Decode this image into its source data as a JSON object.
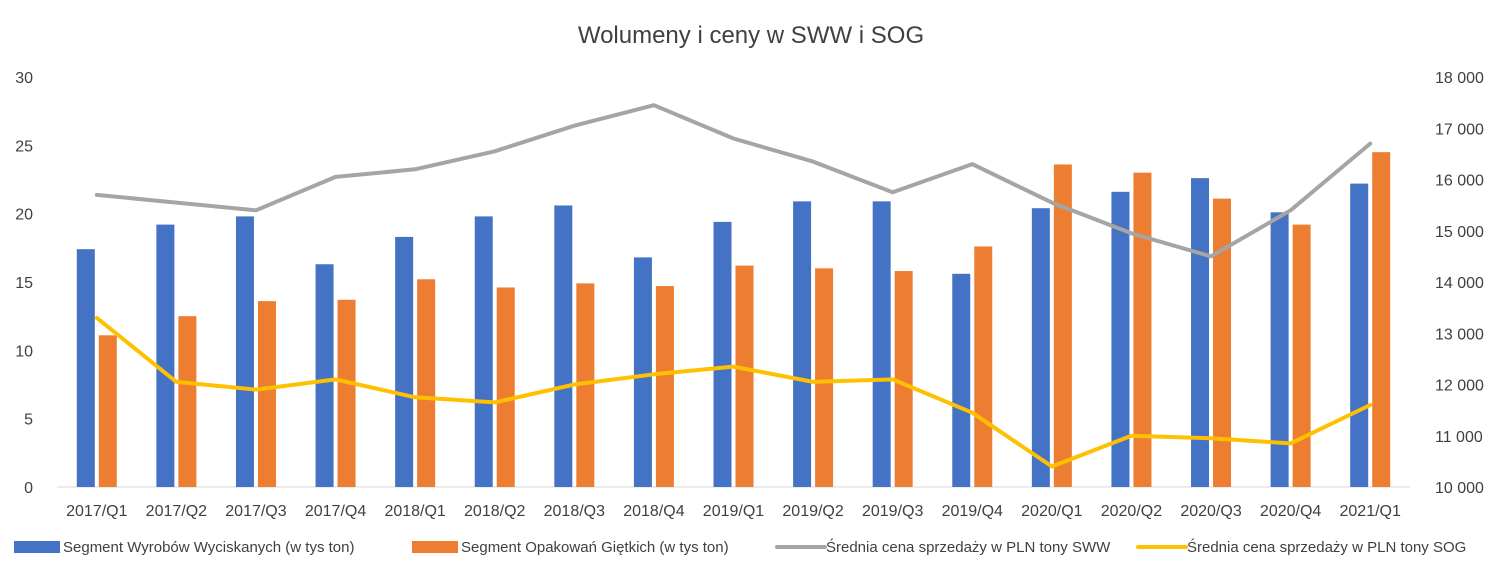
{
  "chart_data": {
    "type": "bar",
    "title": "Wolumeny i ceny w SWW i SOG",
    "categories": [
      "2017/Q1",
      "2017/Q2",
      "2017/Q3",
      "2017/Q4",
      "2018/Q1",
      "2018/Q2",
      "2018/Q3",
      "2018/Q4",
      "2019/Q1",
      "2019/Q2",
      "2019/Q3",
      "2019/Q4",
      "2020/Q1",
      "2020/Q2",
      "2020/Q3",
      "2020/Q4",
      "2021/Q1"
    ],
    "y_left": {
      "ylim": [
        0,
        30
      ],
      "ticks": [
        "0",
        "5",
        "10",
        "15",
        "20",
        "25",
        "30"
      ]
    },
    "y_right": {
      "ylim": [
        10000,
        18000
      ],
      "ticks": [
        "10 000",
        "11 000",
        "12 000",
        "13 000",
        "14 000",
        "15 000",
        "16 000",
        "17 000",
        "18 000"
      ]
    },
    "grid": false,
    "legend_position": "bottom",
    "series": [
      {
        "name": "Segment Wyrobów Wyciskanych (w tys ton)",
        "kind": "bar",
        "axis": "left",
        "color": "#4472C4",
        "values": [
          17.4,
          19.2,
          19.8,
          16.3,
          18.3,
          19.8,
          20.6,
          16.8,
          19.4,
          20.9,
          20.9,
          15.6,
          20.4,
          21.6,
          22.6,
          20.1,
          22.2
        ]
      },
      {
        "name": "Segment Opakowań Giętkich (w tys ton)",
        "kind": "bar",
        "axis": "left",
        "color": "#ED7D31",
        "values": [
          11.1,
          12.5,
          13.6,
          13.7,
          15.2,
          14.6,
          14.9,
          14.7,
          16.2,
          16.0,
          15.8,
          17.6,
          23.6,
          23.0,
          21.1,
          19.2,
          24.5
        ]
      },
      {
        "name": "Średnia cena sprzedaży w PLN tony SWW",
        "kind": "line",
        "axis": "right",
        "color": "#A5A5A5",
        "values": [
          15700,
          15550,
          15400,
          16050,
          16200,
          16550,
          17050,
          17450,
          16800,
          16350,
          15750,
          16300,
          15550,
          14950,
          14500,
          15400,
          16700
        ]
      },
      {
        "name": "Średnia cena sprzedaży w PLN tony SOG",
        "kind": "line",
        "axis": "right",
        "color": "#FFC000",
        "values": [
          13300,
          12050,
          11900,
          12100,
          11750,
          11650,
          12000,
          12200,
          12350,
          12050,
          12100,
          11450,
          10400,
          11000,
          10950,
          10850,
          11600
        ]
      }
    ]
  }
}
